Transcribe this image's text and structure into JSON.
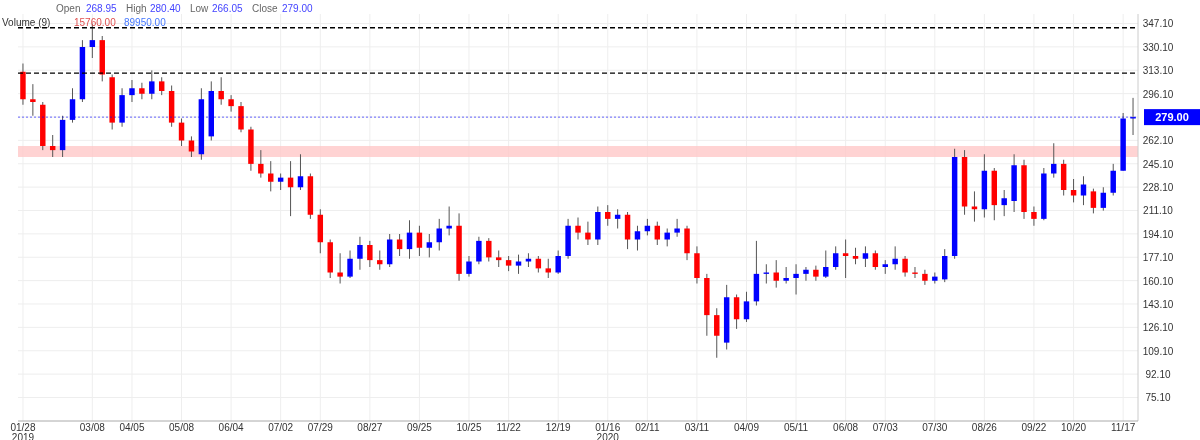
{
  "chart_data": {
    "type": "candlestick",
    "categories": [
      "01/28\n2019",
      null,
      null,
      null,
      null,
      null,
      null,
      "03/08",
      null,
      null,
      null,
      "04/05",
      null,
      null,
      null,
      null,
      "05/08",
      null,
      null,
      null,
      null,
      "06/04",
      null,
      null,
      null,
      null,
      "07/02",
      null,
      null,
      null,
      "07/29",
      null,
      null,
      null,
      null,
      "08/27",
      null,
      null,
      null,
      null,
      "09/25",
      null,
      null,
      null,
      null,
      "10/25",
      null,
      null,
      null,
      "11/22",
      null,
      null,
      null,
      null,
      "12/19",
      null,
      null,
      null,
      null,
      "01/16\n2020",
      null,
      null,
      null,
      "02/11",
      null,
      null,
      null,
      null,
      "03/11",
      null,
      null,
      null,
      null,
      "04/09",
      null,
      null,
      null,
      null,
      "05/11",
      null,
      null,
      null,
      null,
      "06/08",
      null,
      null,
      null,
      "07/03",
      null,
      null,
      null,
      null,
      "07/30",
      null,
      null,
      null,
      null,
      "08/26",
      null,
      null,
      null,
      null,
      "09/22",
      null,
      null,
      null,
      "10/20",
      null,
      null,
      null,
      null,
      "11/17",
      null
    ],
    "ohlc": [
      [
        312,
        318,
        288,
        292
      ],
      [
        292,
        303,
        280,
        290
      ],
      [
        288,
        290,
        255,
        258
      ],
      [
        258,
        266,
        250,
        255
      ],
      [
        255,
        280,
        250,
        277
      ],
      [
        277,
        300,
        275,
        292
      ],
      [
        292,
        335,
        290,
        330
      ],
      [
        330,
        347,
        322,
        335
      ],
      [
        335,
        338,
        305,
        310
      ],
      [
        308,
        310,
        270,
        275
      ],
      [
        275,
        300,
        272,
        295
      ],
      [
        295,
        306,
        290,
        300
      ],
      [
        300,
        304,
        292,
        296
      ],
      [
        296,
        313,
        292,
        305
      ],
      [
        305,
        308,
        295,
        298
      ],
      [
        298,
        302,
        272,
        275
      ],
      [
        275,
        278,
        258,
        262
      ],
      [
        262,
        265,
        250,
        254
      ],
      [
        252,
        300,
        248,
        292
      ],
      [
        265,
        305,
        262,
        298
      ],
      [
        298,
        308,
        288,
        292
      ],
      [
        292,
        295,
        283,
        287
      ],
      [
        287,
        290,
        268,
        270
      ],
      [
        270,
        272,
        240,
        245
      ],
      [
        245,
        255,
        235,
        238
      ],
      [
        238,
        247,
        225,
        232
      ],
      [
        232,
        238,
        226,
        235
      ],
      [
        235,
        247,
        207,
        228
      ],
      [
        228,
        252,
        226,
        236
      ],
      [
        236,
        238,
        205,
        208
      ],
      [
        208,
        212,
        180,
        188
      ],
      [
        188,
        190,
        162,
        166
      ],
      [
        166,
        180,
        158,
        163
      ],
      [
        163,
        182,
        162,
        176
      ],
      [
        176,
        192,
        168,
        186
      ],
      [
        186,
        189,
        170,
        175
      ],
      [
        175,
        182,
        168,
        172
      ],
      [
        172,
        194,
        170,
        190
      ],
      [
        190,
        194,
        178,
        183
      ],
      [
        183,
        204,
        176,
        195
      ],
      [
        195,
        200,
        178,
        184
      ],
      [
        184,
        194,
        177,
        188
      ],
      [
        188,
        205,
        182,
        198
      ],
      [
        198,
        214,
        193,
        200
      ],
      [
        200,
        209,
        160,
        165
      ],
      [
        165,
        178,
        163,
        174
      ],
      [
        174,
        192,
        172,
        189
      ],
      [
        189,
        191,
        174,
        177
      ],
      [
        177,
        182,
        170,
        175
      ],
      [
        175,
        178,
        167,
        171
      ],
      [
        171,
        179,
        165,
        174
      ],
      [
        174,
        180,
        170,
        176
      ],
      [
        176,
        178,
        166,
        169
      ],
      [
        169,
        176,
        162,
        166
      ],
      [
        166,
        182,
        165,
        178
      ],
      [
        178,
        205,
        176,
        200
      ],
      [
        200,
        206,
        190,
        195
      ],
      [
        195,
        203,
        186,
        190
      ],
      [
        190,
        214,
        186,
        210
      ],
      [
        210,
        215,
        200,
        205
      ],
      [
        205,
        212,
        198,
        208
      ],
      [
        208,
        210,
        183,
        190
      ],
      [
        190,
        200,
        182,
        196
      ],
      [
        196,
        205,
        193,
        200
      ],
      [
        200,
        203,
        186,
        190
      ],
      [
        190,
        198,
        185,
        195
      ],
      [
        195,
        205,
        192,
        198
      ],
      [
        198,
        200,
        175,
        180
      ],
      [
        180,
        185,
        158,
        162
      ],
      [
        162,
        165,
        120,
        135
      ],
      [
        135,
        140,
        104,
        120
      ],
      [
        115,
        157,
        110,
        148
      ],
      [
        148,
        150,
        125,
        132
      ],
      [
        132,
        152,
        130,
        145
      ],
      [
        145,
        189,
        142,
        165
      ],
      [
        165,
        172,
        158,
        166
      ],
      [
        166,
        175,
        155,
        160
      ],
      [
        160,
        170,
        158,
        162
      ],
      [
        162,
        172,
        150,
        165
      ],
      [
        165,
        170,
        160,
        168
      ],
      [
        168,
        171,
        160,
        163
      ],
      [
        163,
        182,
        162,
        170
      ],
      [
        170,
        185,
        168,
        180
      ],
      [
        180,
        190,
        162,
        178
      ],
      [
        178,
        184,
        172,
        176
      ],
      [
        176,
        185,
        170,
        180
      ],
      [
        180,
        182,
        168,
        170
      ],
      [
        170,
        175,
        165,
        172
      ],
      [
        172,
        185,
        168,
        176
      ],
      [
        176,
        178,
        163,
        166
      ],
      [
        166,
        170,
        162,
        165
      ],
      [
        165,
        168,
        157,
        160
      ],
      [
        160,
        166,
        158,
        163
      ],
      [
        161,
        183,
        159,
        178
      ],
      [
        178,
        256,
        176,
        250
      ],
      [
        250,
        255,
        208,
        214
      ],
      [
        214,
        225,
        203,
        212
      ],
      [
        212,
        252,
        206,
        240
      ],
      [
        240,
        242,
        204,
        215
      ],
      [
        215,
        226,
        207,
        220
      ],
      [
        218,
        252,
        210,
        244
      ],
      [
        244,
        248,
        205,
        210
      ],
      [
        210,
        214,
        200,
        205
      ],
      [
        205,
        242,
        204,
        238
      ],
      [
        238,
        260,
        235,
        245
      ],
      [
        245,
        248,
        222,
        226
      ],
      [
        226,
        234,
        217,
        222
      ],
      [
        222,
        236,
        215,
        230
      ],
      [
        225,
        227,
        209,
        213
      ],
      [
        213,
        228,
        211,
        224
      ],
      [
        224,
        245,
        222,
        240
      ],
      [
        240,
        282,
        240,
        278
      ],
      [
        278,
        293,
        266,
        279
      ]
    ],
    "ylim": [
      58,
      354
    ],
    "yticks": [
      {
        "value": 75.1,
        "label": "75.10"
      },
      {
        "value": 92.1,
        "label": "92.10"
      },
      {
        "value": 109.1,
        "label": "109.10"
      },
      {
        "value": 126.1,
        "label": "126.10"
      },
      {
        "value": 143.1,
        "label": "143.10"
      },
      {
        "value": 160.1,
        "label": "160.10"
      },
      {
        "value": 177.1,
        "label": "177.10"
      },
      {
        "value": 194.1,
        "label": "194.10"
      },
      {
        "value": 211.1,
        "label": "211.10"
      },
      {
        "value": 228.1,
        "label": "228.10"
      },
      {
        "value": 245.1,
        "label": "245.10"
      },
      {
        "value": 262.1,
        "label": "262.10"
      },
      {
        "value": 279.1,
        "label": null
      },
      {
        "value": 296.1,
        "label": "296.10"
      },
      {
        "value": 313.1,
        "label": "313.10"
      },
      {
        "value": 330.1,
        "label": "330.10"
      },
      {
        "value": 347.1,
        "label": "347.10"
      }
    ],
    "grid": true,
    "ref_lines": [
      {
        "axis": "y",
        "value": 344,
        "color": "#000000",
        "line_style": "dashed"
      },
      {
        "axis": "y",
        "value": 311,
        "color": "#000000",
        "line_style": "dashed"
      },
      {
        "axis": "y",
        "value": 279,
        "label": "279.00",
        "color": "#0000ff",
        "line_style": "dotted"
      }
    ],
    "bands": [
      {
        "axis": "y",
        "from": 250,
        "to": 258,
        "color": "#ffc8c8"
      }
    ],
    "annotations": [
      "Open",
      "268.95",
      "High",
      "280.40",
      "Low",
      "266.05",
      "Close",
      "279.00",
      "Volume (9)",
      "15760.00",
      "89950.00"
    ]
  }
}
